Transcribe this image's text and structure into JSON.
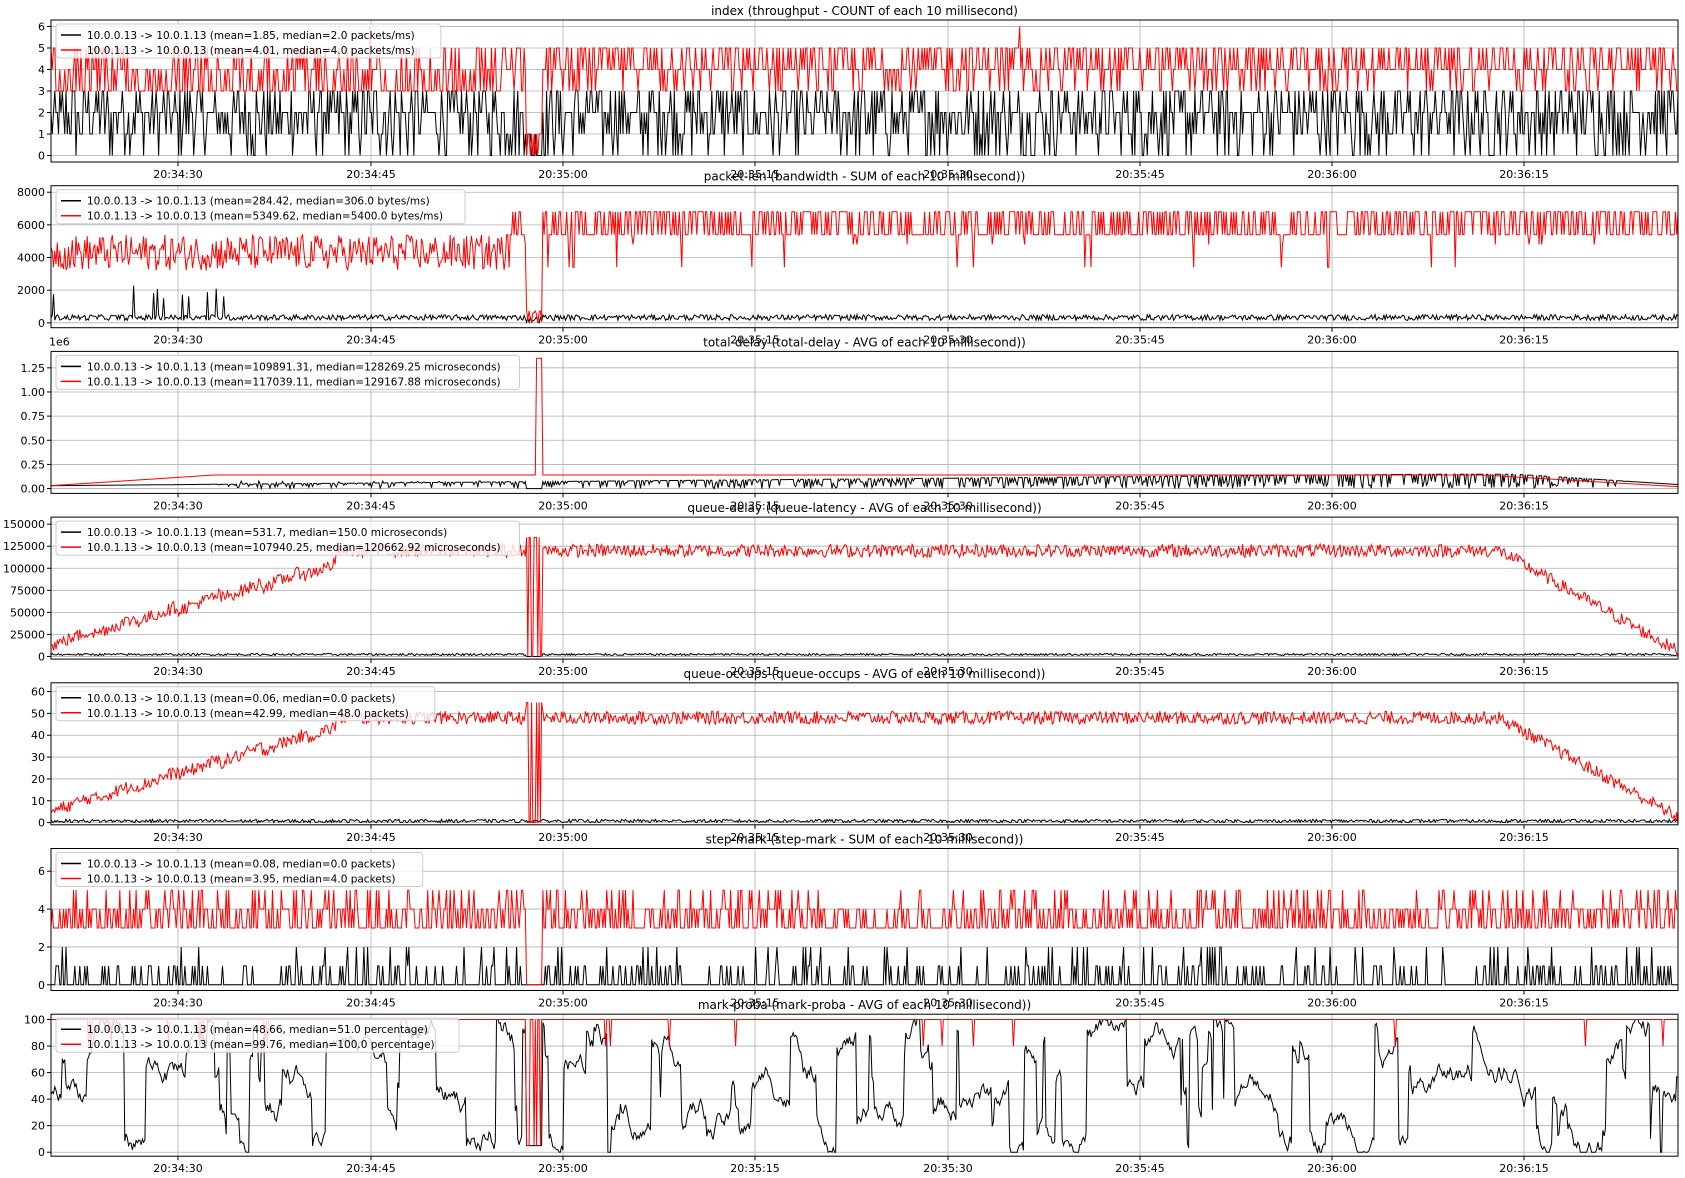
{
  "figure": {
    "background": "#ffffff"
  },
  "x_tick_labels": [
    "20:34:30",
    "20:34:45",
    "20:35:00",
    "20:35:15",
    "20:35:30",
    "20:35:45",
    "20:36:00",
    "20:36:15"
  ],
  "chart_data": [
    {
      "type": "line",
      "title": "index (throughput - COUNT of each 10 millisecond)",
      "xlabel": "",
      "ylabel": "",
      "x_tick_labels": [
        "20:34:30",
        "20:34:45",
        "20:35:00",
        "20:35:15",
        "20:35:30",
        "20:35:45",
        "20:36:00",
        "20:36:15"
      ],
      "y_ticks": [
        0,
        1,
        2,
        3,
        4,
        5,
        6
      ],
      "y_tick_labels": [
        "0",
        "1",
        "2",
        "3",
        "4",
        "5",
        "6"
      ],
      "ylim": [
        -0.3,
        6.3
      ],
      "offset_label": "",
      "grid": true,
      "legend": "upper left",
      "series": [
        {
          "name": "10.0.0.13 -> 10.0.1.13 (mean=1.85, median=2.0 packets/ms)",
          "color": "#000000"
        },
        {
          "name": "10.0.1.13 -> 10.0.0.13 (mean=4.01, median=4.0 packets/ms)",
          "color": "#ff0000"
        }
      ]
    },
    {
      "type": "line",
      "title": "packet-len (bandwidth - SUM of each 10 millisecond))",
      "xlabel": "",
      "ylabel": "",
      "x_tick_labels": [
        "20:34:30",
        "20:34:45",
        "20:35:00",
        "20:35:15",
        "20:35:30",
        "20:35:45",
        "20:36:00",
        "20:36:15"
      ],
      "y_ticks": [
        0,
        2000,
        4000,
        6000,
        8000
      ],
      "y_tick_labels": [
        "0",
        "2000",
        "4000",
        "6000",
        "8000"
      ],
      "ylim": [
        -300,
        8400
      ],
      "offset_label": "",
      "grid": true,
      "legend": "upper left",
      "series": [
        {
          "name": "10.0.0.13 -> 10.0.1.13 (mean=284.42, median=306.0 bytes/ms)",
          "color": "#000000"
        },
        {
          "name": "10.0.1.13 -> 10.0.0.13 (mean=5349.62, median=5400.0 bytes/ms)",
          "color": "#ff0000"
        }
      ]
    },
    {
      "type": "line",
      "title": "total-delay (total-delay - AVG of each 10 millisecond))",
      "xlabel": "",
      "ylabel": "",
      "x_tick_labels": [
        "20:34:30",
        "20:34:45",
        "20:35:00",
        "20:35:15",
        "20:35:30",
        "20:35:45",
        "20:36:00",
        "20:36:15"
      ],
      "y_ticks": [
        0,
        0.25,
        0.5,
        0.75,
        1.0,
        1.25
      ],
      "y_tick_labels": [
        "0.00",
        "0.25",
        "0.50",
        "0.75",
        "1.00",
        "1.25"
      ],
      "ylim": [
        -0.05,
        1.42
      ],
      "offset_label": "1e6",
      "grid": true,
      "legend": "upper left",
      "series": [
        {
          "name": "10.0.0.13 -> 10.0.1.13 (mean=109891.31, median=128269.25 microseconds)",
          "color": "#000000"
        },
        {
          "name": "10.0.1.13 -> 10.0.0.13 (mean=117039.11, median=129167.88 microseconds)",
          "color": "#ff0000"
        }
      ]
    },
    {
      "type": "line",
      "title": "queue-delay (queue-latency - AVG of each 10 millisecond))",
      "xlabel": "",
      "ylabel": "",
      "x_tick_labels": [
        "20:34:30",
        "20:34:45",
        "20:35:00",
        "20:35:15",
        "20:35:30",
        "20:35:45",
        "20:36:00",
        "20:36:15"
      ],
      "y_ticks": [
        0,
        25000,
        50000,
        75000,
        100000,
        125000,
        150000
      ],
      "y_tick_labels": [
        "0",
        "25000",
        "50000",
        "75000",
        "100000",
        "125000",
        "150000"
      ],
      "ylim": [
        -3000,
        158000
      ],
      "offset_label": "",
      "grid": true,
      "legend": "upper left",
      "series": [
        {
          "name": "10.0.0.13 -> 10.0.1.13 (mean=531.7, median=150.0 microseconds)",
          "color": "#000000"
        },
        {
          "name": "10.0.1.13 -> 10.0.0.13 (mean=107940.25, median=120662.92 microseconds)",
          "color": "#ff0000"
        }
      ]
    },
    {
      "type": "line",
      "title": "queue-occups (queue-occups - AVG of each 10 millisecond))",
      "xlabel": "",
      "ylabel": "",
      "x_tick_labels": [
        "20:34:30",
        "20:34:45",
        "20:35:00",
        "20:35:15",
        "20:35:30",
        "20:35:45",
        "20:36:00",
        "20:36:15"
      ],
      "y_ticks": [
        0,
        10,
        20,
        30,
        40,
        50,
        60
      ],
      "y_tick_labels": [
        "0",
        "10",
        "20",
        "30",
        "40",
        "50",
        "60"
      ],
      "ylim": [
        -1,
        64
      ],
      "offset_label": "",
      "grid": true,
      "legend": "upper left",
      "series": [
        {
          "name": "10.0.0.13 -> 10.0.1.13 (mean=0.06, median=0.0 packets)",
          "color": "#000000"
        },
        {
          "name": "10.0.1.13 -> 10.0.0.13 (mean=42.99, median=48.0 packets)",
          "color": "#ff0000"
        }
      ]
    },
    {
      "type": "line",
      "title": "step-mark (step-mark - SUM of each 10 millisecond))",
      "xlabel": "",
      "ylabel": "",
      "x_tick_labels": [
        "20:34:30",
        "20:34:45",
        "20:35:00",
        "20:35:15",
        "20:35:30",
        "20:35:45",
        "20:36:00",
        "20:36:15"
      ],
      "y_ticks": [
        0,
        2,
        4,
        6
      ],
      "y_tick_labels": [
        "0",
        "2",
        "4",
        "6"
      ],
      "ylim": [
        -0.3,
        7.2
      ],
      "offset_label": "",
      "grid": true,
      "legend": "upper left",
      "series": [
        {
          "name": "10.0.0.13 -> 10.0.1.13 (mean=0.08, median=0.0 packets)",
          "color": "#000000"
        },
        {
          "name": "10.0.1.13 -> 10.0.0.13 (mean=3.95, median=4.0 packets)",
          "color": "#ff0000"
        }
      ]
    },
    {
      "type": "line",
      "title": "mark-proba (mark-proba - AVG of each 10 millisecond))",
      "xlabel": "",
      "ylabel": "",
      "x_tick_labels": [
        "20:34:30",
        "20:34:45",
        "20:35:00",
        "20:35:15",
        "20:35:30",
        "20:35:45",
        "20:36:00",
        "20:36:15"
      ],
      "y_ticks": [
        0,
        20,
        40,
        60,
        80,
        100
      ],
      "y_tick_labels": [
        "0",
        "20",
        "40",
        "60",
        "80",
        "100"
      ],
      "ylim": [
        -3,
        104
      ],
      "offset_label": "",
      "grid": true,
      "legend": "upper left",
      "series": [
        {
          "name": "10.0.0.13 -> 10.0.1.13 (mean=48.66, median=51.0 percentage)",
          "color": "#000000"
        },
        {
          "name": "10.0.1.13 -> 10.0.0.13 (mean=99.76, median=100.0 percentage)",
          "color": "#ff0000"
        }
      ]
    }
  ]
}
